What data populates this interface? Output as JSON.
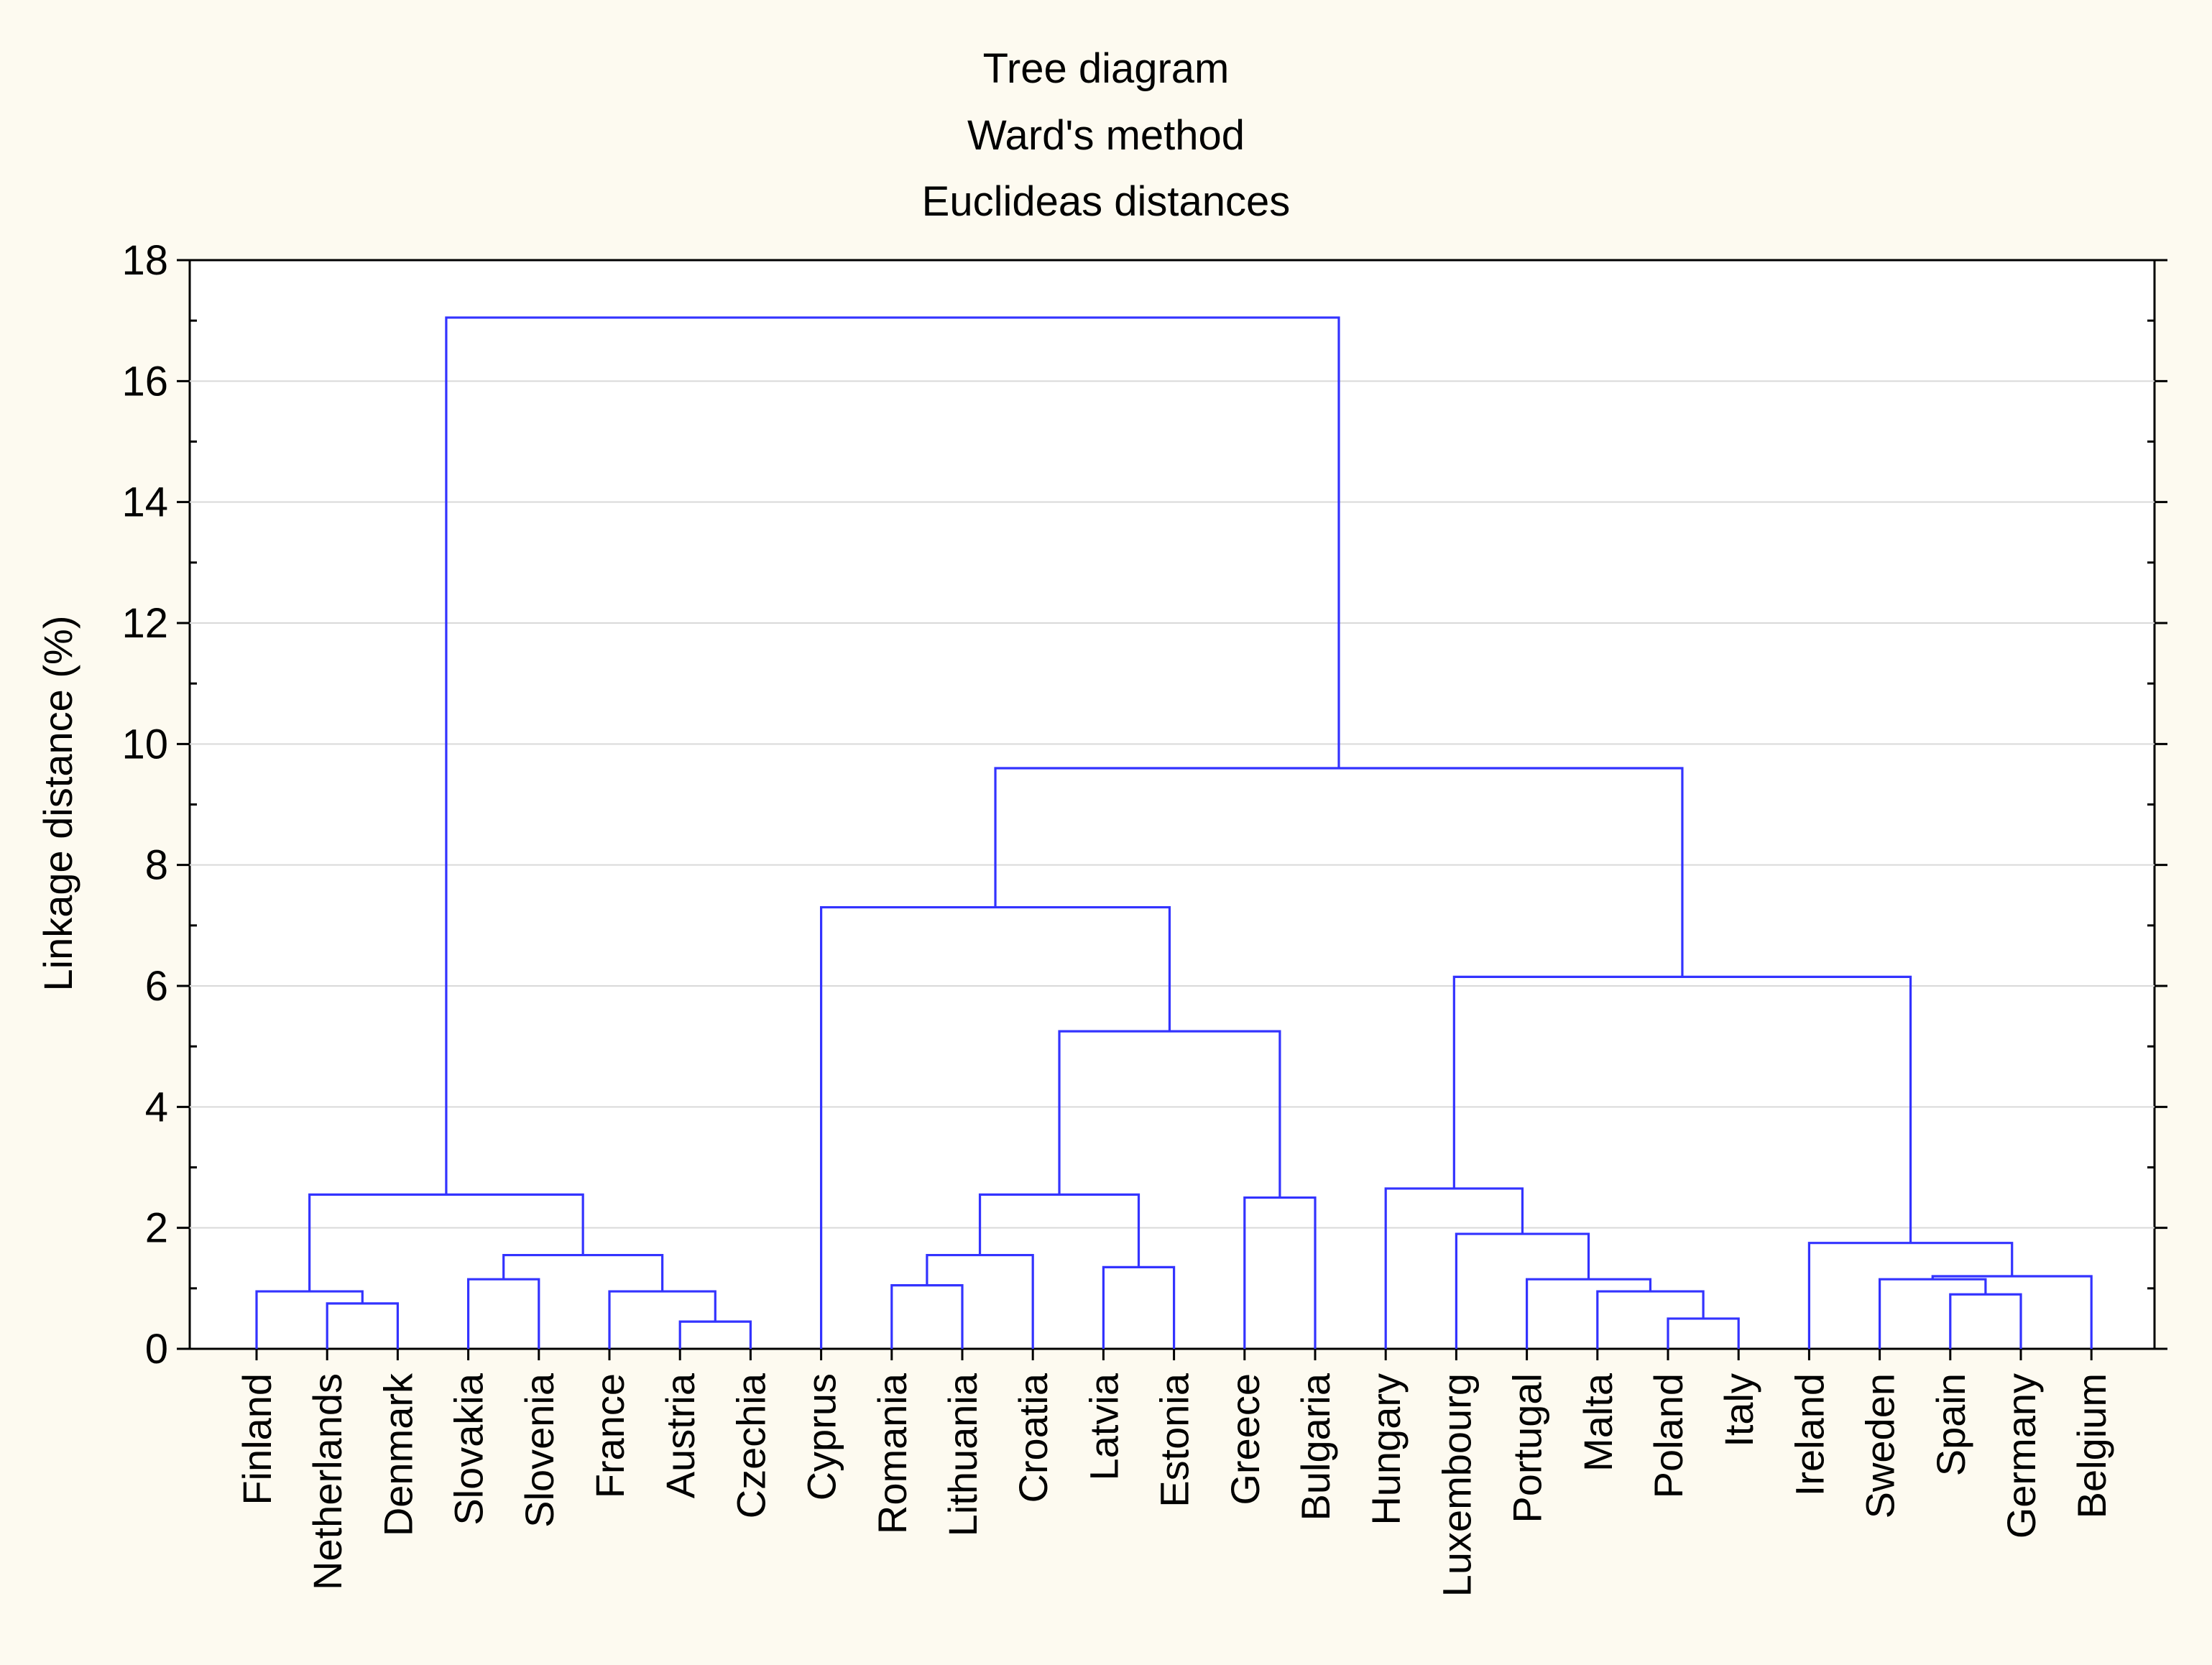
{
  "chart_data": {
    "type": "dendrogram",
    "title_lines": [
      "Tree diagram",
      "Ward's method",
      "Euclideas distances"
    ],
    "xlabel": "",
    "ylabel": "Linkage distance (%)",
    "ylim": [
      0,
      18
    ],
    "yticks": [
      0,
      2,
      4,
      6,
      8,
      10,
      12,
      14,
      16,
      18
    ],
    "grid": true,
    "leaves": [
      "Finland",
      "Netherlands",
      "Denmark",
      "Slovakia",
      "Slovenia",
      "France",
      "Austria",
      "Czechia",
      "Cyprus",
      "Romania",
      "Lithuania",
      "Croatia",
      "Latvia",
      "Estonia",
      "Greece",
      "Bulgaria",
      "Hungary",
      "Luxembourg",
      "Portugal",
      "Malta",
      "Poland",
      "Italy",
      "Ireland",
      "Sweden",
      "Spain",
      "Germany",
      "Belgium"
    ],
    "merges": [
      {
        "id": "m1",
        "left": "Netherlands",
        "right": "Denmark",
        "height": 0.75
      },
      {
        "id": "m2",
        "left": "Finland",
        "right": "m1",
        "height": 0.95
      },
      {
        "id": "m3",
        "left": "Slovakia",
        "right": "Slovenia",
        "height": 1.15
      },
      {
        "id": "m4",
        "left": "Austria",
        "right": "Czechia",
        "height": 0.45
      },
      {
        "id": "m5",
        "left": "France",
        "right": "m4",
        "height": 0.95
      },
      {
        "id": "m6",
        "left": "m3",
        "right": "m5",
        "height": 1.55
      },
      {
        "id": "m7",
        "left": "m2",
        "right": "m6",
        "height": 2.55
      },
      {
        "id": "m8",
        "left": "Romania",
        "right": "Lithuania",
        "height": 1.05
      },
      {
        "id": "m9",
        "left": "m8",
        "right": "Croatia",
        "height": 1.55
      },
      {
        "id": "m10",
        "left": "Latvia",
        "right": "Estonia",
        "height": 1.35
      },
      {
        "id": "m11",
        "left": "m9",
        "right": "m10",
        "height": 2.55
      },
      {
        "id": "m12",
        "left": "Greece",
        "right": "Bulgaria",
        "height": 2.5
      },
      {
        "id": "m13",
        "left": "m11",
        "right": "m12",
        "height": 5.25
      },
      {
        "id": "m14",
        "left": "Cyprus",
        "right": "m13",
        "height": 7.3
      },
      {
        "id": "m15",
        "left": "Poland",
        "right": "Italy",
        "height": 0.5
      },
      {
        "id": "m16",
        "left": "Malta",
        "right": "m15",
        "height": 0.95
      },
      {
        "id": "m17",
        "left": "Portugal",
        "right": "m16",
        "height": 1.15
      },
      {
        "id": "m18",
        "left": "Luxembourg",
        "right": "m17",
        "height": 1.9
      },
      {
        "id": "m19",
        "left": "Hungary",
        "right": "m18",
        "height": 2.65
      },
      {
        "id": "m20",
        "left": "Spain",
        "right": "Germany",
        "height": 0.9
      },
      {
        "id": "m21",
        "left": "Sweden",
        "right": "m20",
        "height": 1.15
      },
      {
        "id": "m22",
        "left": "m21",
        "right": "Belgium",
        "height": 1.2
      },
      {
        "id": "m23",
        "left": "Ireland",
        "right": "m22",
        "height": 1.75
      },
      {
        "id": "m24",
        "left": "m19",
        "right": "m23",
        "height": 6.15
      },
      {
        "id": "m25",
        "left": "m14",
        "right": "m24",
        "height": 9.6
      },
      {
        "id": "m26",
        "left": "m7",
        "right": "m25",
        "height": 17.05
      }
    ]
  },
  "colors": {
    "page_background": "#fdfaf0",
    "plot_background": "#ffffff",
    "link": "#3333ff",
    "grid": "#d9d9d9",
    "axis": "#000000"
  }
}
